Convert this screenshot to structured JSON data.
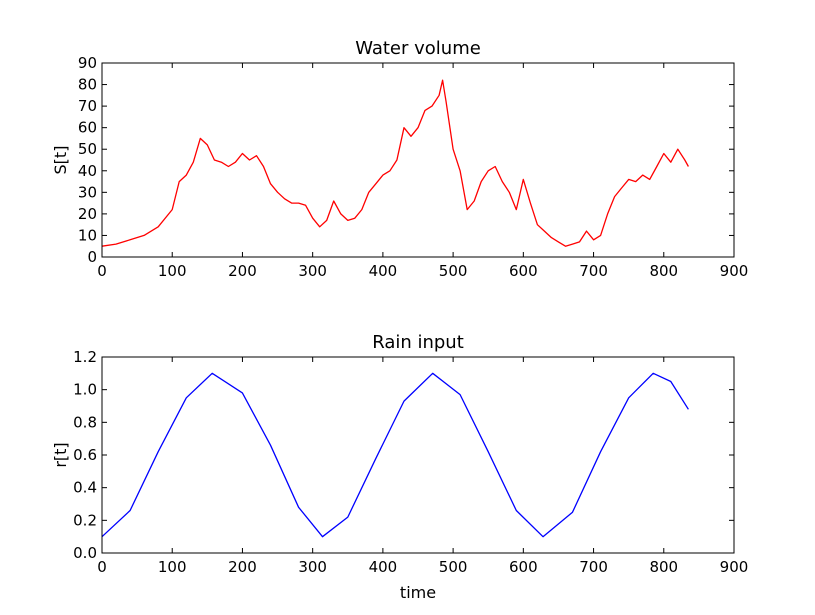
{
  "chart_data": [
    {
      "type": "line",
      "title": "Water volume",
      "xlabel": "",
      "ylabel": "S[t]",
      "xlim": [
        0,
        900
      ],
      "ylim": [
        0,
        90
      ],
      "xticks": [
        0,
        100,
        200,
        300,
        400,
        500,
        600,
        700,
        800,
        900
      ],
      "yticks": [
        0,
        10,
        20,
        30,
        40,
        50,
        60,
        70,
        80,
        90
      ],
      "grid": false,
      "series": [
        {
          "color": "#ff0000",
          "x": [
            0,
            20,
            40,
            60,
            80,
            100,
            110,
            120,
            130,
            140,
            150,
            160,
            170,
            180,
            190,
            200,
            210,
            220,
            230,
            240,
            250,
            260,
            270,
            280,
            290,
            300,
            310,
            320,
            330,
            340,
            350,
            360,
            370,
            380,
            390,
            400,
            410,
            420,
            430,
            440,
            450,
            460,
            470,
            480,
            485,
            490,
            500,
            510,
            520,
            530,
            540,
            550,
            560,
            570,
            580,
            590,
            600,
            610,
            620,
            630,
            640,
            650,
            660,
            670,
            680,
            690,
            700,
            710,
            720,
            730,
            740,
            750,
            760,
            770,
            780,
            790,
            800,
            810,
            820,
            830,
            835
          ],
          "values": [
            5,
            6,
            8,
            10,
            14,
            22,
            35,
            38,
            44,
            55,
            52,
            45,
            44,
            42,
            44,
            48,
            45,
            47,
            42,
            34,
            30,
            27,
            25,
            25,
            24,
            18,
            14,
            17,
            26,
            20,
            17,
            18,
            22,
            30,
            34,
            38,
            40,
            45,
            60,
            56,
            60,
            68,
            70,
            75,
            82,
            72,
            50,
            40,
            22,
            26,
            35,
            40,
            42,
            35,
            30,
            22,
            36,
            25,
            15,
            12,
            9,
            7,
            5,
            6,
            7,
            12,
            8,
            10,
            20,
            28,
            32,
            36,
            35,
            38,
            36,
            42,
            48,
            44,
            50,
            45,
            42
          ]
        }
      ]
    },
    {
      "type": "line",
      "title": "Rain input",
      "xlabel": "time",
      "ylabel": "r[t]",
      "xlim": [
        0,
        900
      ],
      "ylim": [
        0,
        1.2
      ],
      "xticks": [
        0,
        100,
        200,
        300,
        400,
        500,
        600,
        700,
        800,
        900
      ],
      "yticks": [
        0.0,
        0.2,
        0.4,
        0.6,
        0.8,
        1.0,
        1.2
      ],
      "grid": false,
      "series": [
        {
          "color": "#0000ff",
          "x": [
            0,
            40,
            80,
            120,
            157,
            200,
            240,
            280,
            314,
            350,
            390,
            430,
            471,
            510,
            550,
            590,
            628,
            670,
            710,
            750,
            785,
            810,
            835
          ],
          "values": [
            0.1,
            0.26,
            0.62,
            0.95,
            1.1,
            0.98,
            0.66,
            0.28,
            0.1,
            0.22,
            0.58,
            0.93,
            1.1,
            0.97,
            0.62,
            0.26,
            0.1,
            0.25,
            0.62,
            0.95,
            1.1,
            1.05,
            0.88
          ]
        }
      ]
    }
  ]
}
